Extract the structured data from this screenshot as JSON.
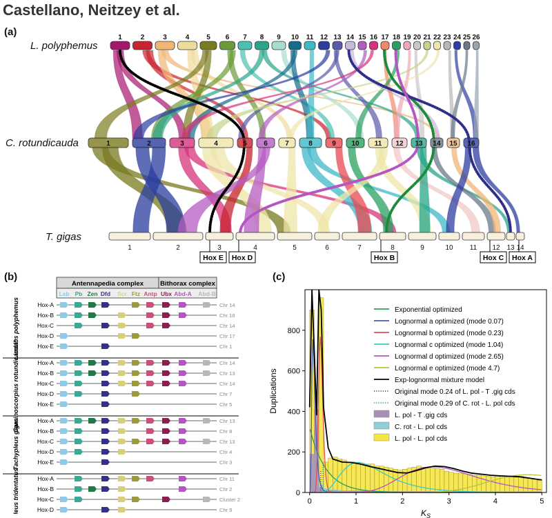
{
  "header": {
    "title": "Castellano, Neitzey et al."
  },
  "panel_a": {
    "label": "(a)",
    "species": [
      "L. polyphemus",
      "C. rotundicauda",
      "T. gigas"
    ],
    "lp_chrs": [
      "1",
      "2",
      "3",
      "4",
      "5",
      "6",
      "7",
      "8",
      "9",
      "10",
      "11",
      "12",
      "13",
      "14",
      "15",
      "16",
      "17",
      "18",
      "19",
      "20",
      "21",
      "22",
      "23",
      "24",
      "25",
      "26"
    ],
    "cr_chrs": [
      "1",
      "2",
      "3",
      "4",
      "5",
      "6",
      "7",
      "8",
      "9",
      "10",
      "11",
      "12",
      "13",
      "14",
      "15",
      "16"
    ],
    "tg_chrs": [
      "1",
      "2",
      "3",
      "4",
      "5",
      "6",
      "7",
      "8",
      "9",
      "10",
      "11",
      "12",
      "13",
      "14"
    ],
    "hox_labels": [
      "Hox E",
      "Hox D",
      "Hox B",
      "Hox C",
      "Hox A"
    ]
  },
  "panel_b": {
    "label": "(b)",
    "complex_ant": "Antennapedia complex",
    "complex_bith": "Bithorax complex",
    "genes": [
      "Lab",
      "Pb",
      "Zen",
      "Dfd",
      "Scr",
      "Ftz",
      "Antp",
      "Ubx",
      "Abd-A",
      "Abd-B"
    ],
    "gene_colors": [
      "#8fcbe8",
      "#3aa893",
      "#1f7a47",
      "#35318a",
      "#d8d078",
      "#9c9a3a",
      "#c94f7c",
      "#8c1f52",
      "#b455c2",
      "#b8b8b8"
    ],
    "groups": [
      {
        "species": "Limulus polyphemus",
        "rows": [
          {
            "name": "Hox-A",
            "chr": "Chr 14"
          },
          {
            "name": "Hox-B",
            "chr": "Chr 18"
          },
          {
            "name": "Hox-C",
            "chr": "Chr 14"
          },
          {
            "name": "Hox-D",
            "chr": "Chr 17"
          },
          {
            "name": "Hox-E",
            "chr": "Chr 1"
          }
        ]
      },
      {
        "species": "Carcinoscorpius rotundicauda*",
        "rows": [
          {
            "name": "Hox-A",
            "chr": "Chr 14"
          },
          {
            "name": "Hox-B",
            "chr": "Chr 13"
          },
          {
            "name": "Hox-C",
            "chr": "Chr 14"
          },
          {
            "name": "Hox-D",
            "chr": "Chr 7"
          },
          {
            "name": "Hox-E",
            "chr": "Chr 5"
          }
        ]
      },
      {
        "species": "Tachypleus gigas",
        "rows": [
          {
            "name": "Hox-A",
            "chr": "Chr 13"
          },
          {
            "name": "Hox-B",
            "chr": "Chr 8"
          },
          {
            "name": "Hox-C",
            "chr": "Chr 13"
          },
          {
            "name": "Hox-D",
            "chr": "Chr 4"
          },
          {
            "name": "Hox-E",
            "chr": "Chr 3"
          }
        ]
      },
      {
        "species": "Tachypleus tridentatus",
        "rows": [
          {
            "name": "Hox-A",
            "chr": "Chr 11"
          },
          {
            "name": "Hox-B",
            "chr": "Chr 2"
          },
          {
            "name": "Hox-C",
            "chr": "Cluster 2"
          },
          {
            "name": "Hox-D",
            "chr": "Chr 9"
          },
          {
            "name": "Hox-E",
            "chr": "Chr 11"
          }
        ]
      }
    ]
  },
  "chart_data": {
    "type": "bar",
    "title": "",
    "panel_label": "(c)",
    "xlabel": "K",
    "xlabel_sub": "S",
    "ylabel": "Duplications",
    "xlim": [
      -0.1,
      5.1
    ],
    "ylim": [
      0,
      1000
    ],
    "xticks": [
      0,
      1,
      2,
      3,
      4,
      5
    ],
    "yticks": [
      0,
      200,
      400,
      600,
      800
    ],
    "bin_width": 0.1,
    "bins_x": [
      0.05,
      0.15,
      0.25,
      0.35,
      0.45,
      0.55,
      0.65,
      0.75,
      0.85,
      0.95,
      1.05,
      1.15,
      1.25,
      1.35,
      1.45,
      1.55,
      1.65,
      1.75,
      1.85,
      1.95,
      2.05,
      2.15,
      2.25,
      2.35,
      2.45,
      2.55,
      2.65,
      2.75,
      2.85,
      2.95,
      3.05,
      3.15,
      3.25,
      3.35,
      3.45,
      3.55,
      3.65,
      3.75,
      3.85,
      3.95,
      4.05,
      4.15,
      4.25,
      4.35,
      4.45,
      4.55,
      4.65,
      4.75,
      4.85,
      4.95
    ],
    "series": [
      {
        "name": "L. pol - L. pol cds",
        "color": "#f5e642",
        "values": [
          900,
          310,
          960,
          150,
          170,
          175,
          165,
          160,
          150,
          150,
          145,
          140,
          140,
          140,
          130,
          130,
          125,
          120,
          115,
          110,
          115,
          120,
          125,
          130,
          125,
          120,
          120,
          118,
          115,
          105,
          100,
          95,
          95,
          92,
          90,
          85,
          85,
          82,
          80,
          78,
          80,
          80,
          78,
          80,
          75,
          80,
          70,
          70,
          65,
          60
        ]
      },
      {
        "name": "C. rot - L. pol cds",
        "color": "#8fd0d8",
        "values": [
          140,
          330,
          40,
          20,
          15,
          15,
          12,
          10,
          10,
          10,
          10,
          10,
          10,
          8,
          8,
          8,
          8,
          6,
          6,
          6,
          6,
          6,
          6,
          6,
          6,
          6,
          6,
          6,
          6,
          5,
          5,
          5,
          5,
          5,
          5,
          5,
          5,
          5,
          5,
          5,
          5,
          5,
          5,
          5,
          5,
          5,
          5,
          5,
          5,
          5
        ]
      },
      {
        "name": "L. pol - T .gig cds",
        "color": "#a98fb8",
        "values": [
          190,
          410,
          25,
          12,
          10,
          10,
          8,
          8,
          8,
          8,
          8,
          8,
          8,
          6,
          6,
          6,
          6,
          5,
          5,
          5,
          5,
          5,
          5,
          5,
          5,
          5,
          5,
          5,
          5,
          4,
          4,
          4,
          4,
          4,
          4,
          4,
          4,
          4,
          4,
          4,
          4,
          4,
          4,
          4,
          4,
          4,
          4,
          4,
          4,
          4
        ]
      }
    ],
    "mixture_model": {
      "x": [
        0.0,
        0.05,
        0.1,
        0.15,
        0.2,
        0.25,
        0.3,
        0.4,
        0.5,
        0.7,
        0.9,
        1.1,
        1.3,
        1.5,
        1.7,
        1.9,
        2.1,
        2.3,
        2.5,
        2.7,
        2.9,
        3.1,
        3.3,
        3.5,
        3.7,
        3.9,
        4.1,
        4.3,
        4.5,
        4.7,
        4.9,
        5.0
      ],
      "y": [
        420,
        1000,
        700,
        380,
        1000,
        900,
        420,
        220,
        165,
        150,
        148,
        140,
        128,
        118,
        108,
        98,
        96,
        108,
        122,
        130,
        128,
        118,
        105,
        95,
        90,
        85,
        82,
        80,
        78,
        72,
        65,
        62
      ]
    },
    "legend": [
      {
        "label": "Exponential optimized",
        "color": "#2e9c5b",
        "style": "solid"
      },
      {
        "label": "Lognormal a optimized (mode 0.07)",
        "color": "#4a5aa8",
        "style": "solid"
      },
      {
        "label": "Lognormal b optimized (mode 0.23)",
        "color": "#e05050",
        "style": "solid"
      },
      {
        "label": "Lognormal c optimized (mode 1.04)",
        "color": "#3ec7c7",
        "style": "solid"
      },
      {
        "label": "Lognormal d optimized (mode 2.65)",
        "color": "#b455c2",
        "style": "solid"
      },
      {
        "label": "Lognormal e optimized (mode 4.7)",
        "color": "#b8c23a",
        "style": "solid"
      },
      {
        "label": "Exp-lognormal mixture model",
        "color": "#000000",
        "style": "solid"
      },
      {
        "label": "Original mode 0.24 of L. pol - T .gig cds",
        "color": "#333366",
        "style": "dotted"
      },
      {
        "label": "Original mode 0.29 of C. rot - L. pol cds",
        "color": "#2a8a8a",
        "style": "dotted"
      },
      {
        "label": "L. pol - T .gig cds",
        "color": "#a98fb8",
        "style": "patch"
      },
      {
        "label": "C. rot - L. pol cds",
        "color": "#8fd0d8",
        "style": "patch"
      },
      {
        "label": "L. pol - L. pol cds",
        "color": "#f5e642",
        "style": "patch"
      }
    ]
  }
}
